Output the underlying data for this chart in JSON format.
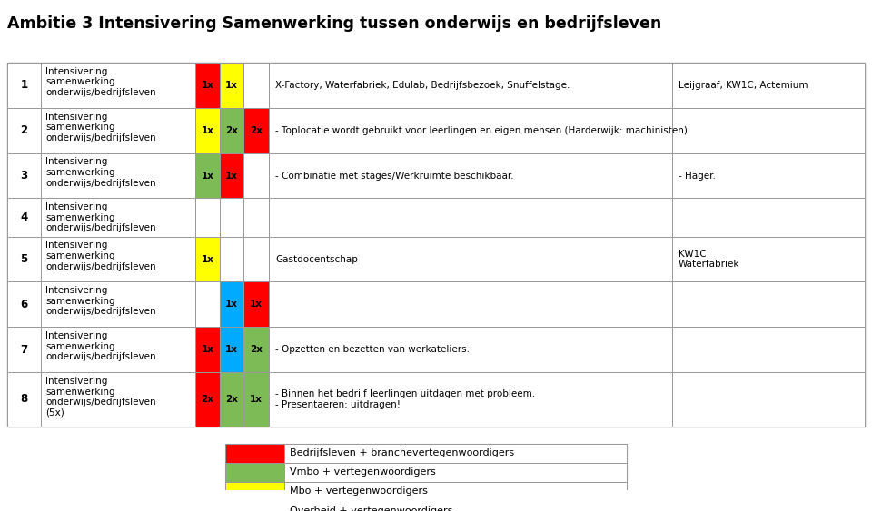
{
  "title": "Ambitie 3 Intensivering Samenwerking tussen onderwijs en bedrijfsleven",
  "title_fontsize": 12.5,
  "background_color": "#ffffff",
  "rows": [
    {
      "num": "1",
      "col1": "Intensivering\nsamenwerking\nonderwijs/bedrijfsleven",
      "cells": [
        {
          "color": "#ff0000",
          "text": "1x"
        },
        {
          "color": "#ffff00",
          "text": "1x"
        },
        {
          "color": null,
          "text": ""
        }
      ],
      "description": "X-Factory, Waterfabriek, Edulab, Bedrijfsbezoek, Snuffelstage.",
      "extra": "Leijgraaf, KW1C, Actemium"
    },
    {
      "num": "2",
      "col1": "Intensivering\nsamenwerking\nonderwijs/bedrijfsleven",
      "cells": [
        {
          "color": "#ffff00",
          "text": "1x"
        },
        {
          "color": "#7dbb57",
          "text": "2x"
        },
        {
          "color": "#ff0000",
          "text": "2x"
        }
      ],
      "description": "- Toplocatie wordt gebruikt voor leerlingen en eigen mensen (Harderwijk: machinisten).",
      "extra": ""
    },
    {
      "num": "3",
      "col1": "Intensivering\nsamenwerking\nonderwijs/bedrijfsleven",
      "cells": [
        {
          "color": "#7dbb57",
          "text": "1x"
        },
        {
          "color": "#ff0000",
          "text": "1x"
        },
        {
          "color": null,
          "text": ""
        }
      ],
      "description": "- Combinatie met stages/Werkruimte beschikbaar.",
      "extra": "- Hager."
    },
    {
      "num": "4",
      "col1": "Intensivering\nsamenwerking\nonderwijs/bedrijfsleven",
      "cells": [
        {
          "color": null,
          "text": ""
        },
        {
          "color": null,
          "text": ""
        },
        {
          "color": null,
          "text": ""
        }
      ],
      "description": "",
      "extra": ""
    },
    {
      "num": "5",
      "col1": "Intensivering\nsamenwerking\nonderwijs/bedrijfsleven",
      "cells": [
        {
          "color": "#ffff00",
          "text": "1x"
        },
        {
          "color": null,
          "text": ""
        },
        {
          "color": null,
          "text": ""
        }
      ],
      "description": "Gastdocentschap",
      "extra": "KW1C\nWaterfabriek"
    },
    {
      "num": "6",
      "col1": "Intensivering\nsamenwerking\nonderwijs/bedrijfsleven",
      "cells": [
        {
          "color": null,
          "text": ""
        },
        {
          "color": "#00aaff",
          "text": "1x"
        },
        {
          "color": "#ff0000",
          "text": "1x"
        }
      ],
      "description": "",
      "extra": ""
    },
    {
      "num": "7",
      "col1": "Intensivering\nsamenwerking\nonderwijs/bedrijfsleven",
      "cells": [
        {
          "color": "#ff0000",
          "text": "1x"
        },
        {
          "color": "#00aaff",
          "text": "1x"
        },
        {
          "color": "#7dbb57",
          "text": "2x"
        }
      ],
      "description": "- Opzetten en bezetten van werkateliers.",
      "extra": ""
    },
    {
      "num": "8",
      "col1": "Intensivering\nsamenwerking\nonderwijs/bedrijfsleven\n(5x)",
      "cells": [
        {
          "color": "#ff0000",
          "text": "2x"
        },
        {
          "color": "#7dbb57",
          "text": "2x"
        },
        {
          "color": "#7dbb57",
          "text": "1x"
        }
      ],
      "description": "- Binnen het bedrijf leerlingen uitdagen met probleem.\n- Presentaeren: uitdragen!",
      "extra": ""
    }
  ],
  "legend": [
    {
      "color": "#ff0000",
      "label": "Bedrijfsleven + branchevertegenwoordigers"
    },
    {
      "color": "#7dbb57",
      "label": "Vmbo + vertegenwoordigers"
    },
    {
      "color": "#ffff00",
      "label": "Mbo + vertegenwoordigers"
    },
    {
      "color": "#00aaff",
      "label": "Overheid + vertegenwoordigers"
    }
  ],
  "border_color": "#999999",
  "text_color": "#000000"
}
